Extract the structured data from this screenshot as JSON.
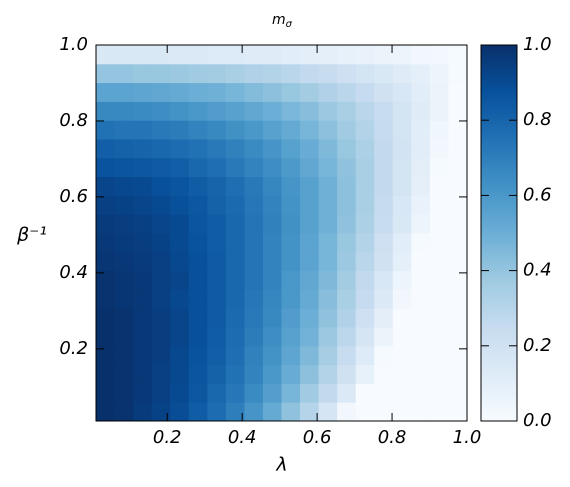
{
  "chart_data": {
    "type": "heatmap",
    "title": "m",
    "title_subscript": "σ",
    "xlabel": "λ",
    "ylabel": "β⁻¹",
    "x": [
      0.035,
      0.084,
      0.134,
      0.183,
      0.233,
      0.282,
      0.332,
      0.381,
      0.431,
      0.48,
      0.53,
      0.579,
      0.629,
      0.678,
      0.728,
      0.777,
      0.827,
      0.876,
      0.926,
      0.975
    ],
    "y": [
      0.035,
      0.084,
      0.134,
      0.183,
      0.233,
      0.282,
      0.332,
      0.381,
      0.431,
      0.48,
      0.53,
      0.579,
      0.629,
      0.678,
      0.728,
      0.777,
      0.827,
      0.876,
      0.926,
      0.975
    ],
    "values": [
      [
        1.0,
        0.99,
        0.96,
        0.93,
        0.89,
        0.83,
        0.77,
        0.7,
        0.61,
        0.52,
        0.41,
        0.3,
        0.17,
        0.03,
        0,
        0,
        0,
        0,
        0,
        0
      ],
      [
        1.0,
        0.99,
        0.97,
        0.94,
        0.9,
        0.85,
        0.79,
        0.73,
        0.65,
        0.57,
        0.47,
        0.37,
        0.26,
        0.14,
        0,
        0,
        0,
        0,
        0,
        0
      ],
      [
        1.0,
        0.99,
        0.97,
        0.94,
        0.91,
        0.86,
        0.81,
        0.75,
        0.68,
        0.6,
        0.51,
        0.42,
        0.31,
        0.2,
        0.08,
        0,
        0,
        0,
        0,
        0
      ],
      [
        1.0,
        0.99,
        0.97,
        0.95,
        0.91,
        0.87,
        0.82,
        0.76,
        0.69,
        0.62,
        0.54,
        0.45,
        0.35,
        0.24,
        0.13,
        0.01,
        0,
        0,
        0,
        0
      ],
      [
        1.0,
        0.99,
        0.97,
        0.95,
        0.92,
        0.88,
        0.83,
        0.77,
        0.71,
        0.64,
        0.56,
        0.48,
        0.38,
        0.28,
        0.17,
        0.06,
        0,
        0,
        0,
        0
      ],
      [
        1.0,
        0.99,
        0.97,
        0.95,
        0.92,
        0.88,
        0.84,
        0.78,
        0.72,
        0.66,
        0.58,
        0.5,
        0.41,
        0.32,
        0.21,
        0.1,
        0,
        0,
        0,
        0
      ],
      [
        0.99,
        0.98,
        0.97,
        0.94,
        0.91,
        0.88,
        0.84,
        0.79,
        0.73,
        0.67,
        0.6,
        0.52,
        0.43,
        0.34,
        0.25,
        0.14,
        0.03,
        0,
        0,
        0
      ],
      [
        0.99,
        0.98,
        0.97,
        0.94,
        0.92,
        0.88,
        0.84,
        0.79,
        0.74,
        0.68,
        0.6,
        0.53,
        0.45,
        0.36,
        0.26,
        0.16,
        0.05,
        0,
        0,
        0
      ],
      [
        0.98,
        0.97,
        0.96,
        0.94,
        0.91,
        0.88,
        0.84,
        0.79,
        0.74,
        0.68,
        0.62,
        0.55,
        0.47,
        0.38,
        0.29,
        0.2,
        0.09,
        0,
        0,
        0
      ],
      [
        0.97,
        0.96,
        0.95,
        0.93,
        0.9,
        0.87,
        0.83,
        0.79,
        0.74,
        0.68,
        0.62,
        0.55,
        0.47,
        0.39,
        0.31,
        0.21,
        0.11,
        0.01,
        0,
        0
      ],
      [
        0.96,
        0.95,
        0.94,
        0.92,
        0.9,
        0.86,
        0.83,
        0.79,
        0.74,
        0.69,
        0.63,
        0.56,
        0.49,
        0.41,
        0.33,
        0.24,
        0.15,
        0.05,
        0,
        0
      ],
      [
        0.94,
        0.93,
        0.92,
        0.9,
        0.88,
        0.85,
        0.81,
        0.78,
        0.73,
        0.68,
        0.62,
        0.56,
        0.49,
        0.42,
        0.34,
        0.25,
        0.16,
        0.07,
        0,
        0
      ],
      [
        0.92,
        0.91,
        0.9,
        0.88,
        0.86,
        0.83,
        0.8,
        0.76,
        0.72,
        0.67,
        0.61,
        0.56,
        0.49,
        0.42,
        0.34,
        0.26,
        0.18,
        0.09,
        0,
        0
      ],
      [
        0.87,
        0.86,
        0.85,
        0.84,
        0.82,
        0.79,
        0.76,
        0.72,
        0.68,
        0.64,
        0.59,
        0.53,
        0.47,
        0.41,
        0.34,
        0.26,
        0.18,
        0.1,
        0.01,
        0
      ],
      [
        0.82,
        0.81,
        0.8,
        0.79,
        0.77,
        0.75,
        0.72,
        0.69,
        0.65,
        0.61,
        0.56,
        0.51,
        0.45,
        0.39,
        0.33,
        0.26,
        0.19,
        0.11,
        0.03,
        0
      ],
      [
        0.75,
        0.74,
        0.74,
        0.72,
        0.71,
        0.68,
        0.66,
        0.63,
        0.6,
        0.56,
        0.52,
        0.47,
        0.42,
        0.37,
        0.31,
        0.25,
        0.18,
        0.11,
        0.04,
        0
      ],
      [
        0.66,
        0.66,
        0.65,
        0.64,
        0.62,
        0.6,
        0.58,
        0.56,
        0.53,
        0.5,
        0.46,
        0.43,
        0.38,
        0.34,
        0.29,
        0.24,
        0.18,
        0.12,
        0.06,
        0
      ],
      [
        0.55,
        0.55,
        0.54,
        0.53,
        0.52,
        0.5,
        0.49,
        0.47,
        0.44,
        0.42,
        0.39,
        0.36,
        0.32,
        0.29,
        0.25,
        0.2,
        0.16,
        0.11,
        0.06,
        0.0
      ],
      [
        0.4,
        0.4,
        0.39,
        0.39,
        0.38,
        0.37,
        0.36,
        0.34,
        0.32,
        0.31,
        0.29,
        0.26,
        0.24,
        0.21,
        0.18,
        0.15,
        0.12,
        0.09,
        0.05,
        0.01
      ],
      [
        0.15,
        0.15,
        0.15,
        0.15,
        0.14,
        0.14,
        0.13,
        0.13,
        0.12,
        0.12,
        0.11,
        0.1,
        0.09,
        0.08,
        0.07,
        0.06,
        0.05,
        0.03,
        0.02,
        0.01
      ]
    ],
    "xlim": [
      0.01,
      1.0
    ],
    "ylim": [
      0.01,
      1.0
    ],
    "xticks": [
      0.2,
      0.4,
      0.6,
      0.8,
      {
        "value": 1.0,
        "label": "1.0"
      }
    ],
    "yticks": [
      0.2,
      0.4,
      0.6,
      0.8,
      {
        "value": 1.0,
        "label": "1.0"
      }
    ],
    "clim": [
      0,
      1
    ],
    "cticks": [
      {
        "value": 0,
        "label": "0.0"
      },
      0.2,
      0.4,
      0.6,
      0.8,
      {
        "value": 1.0,
        "label": "1.0"
      }
    ],
    "colormap": [
      "#f7fbff",
      "#deebf7",
      "#c6dbef",
      "#9ecae1",
      "#6baed6",
      "#4292c6",
      "#2171b5",
      "#08519c",
      "#08306b"
    ]
  }
}
